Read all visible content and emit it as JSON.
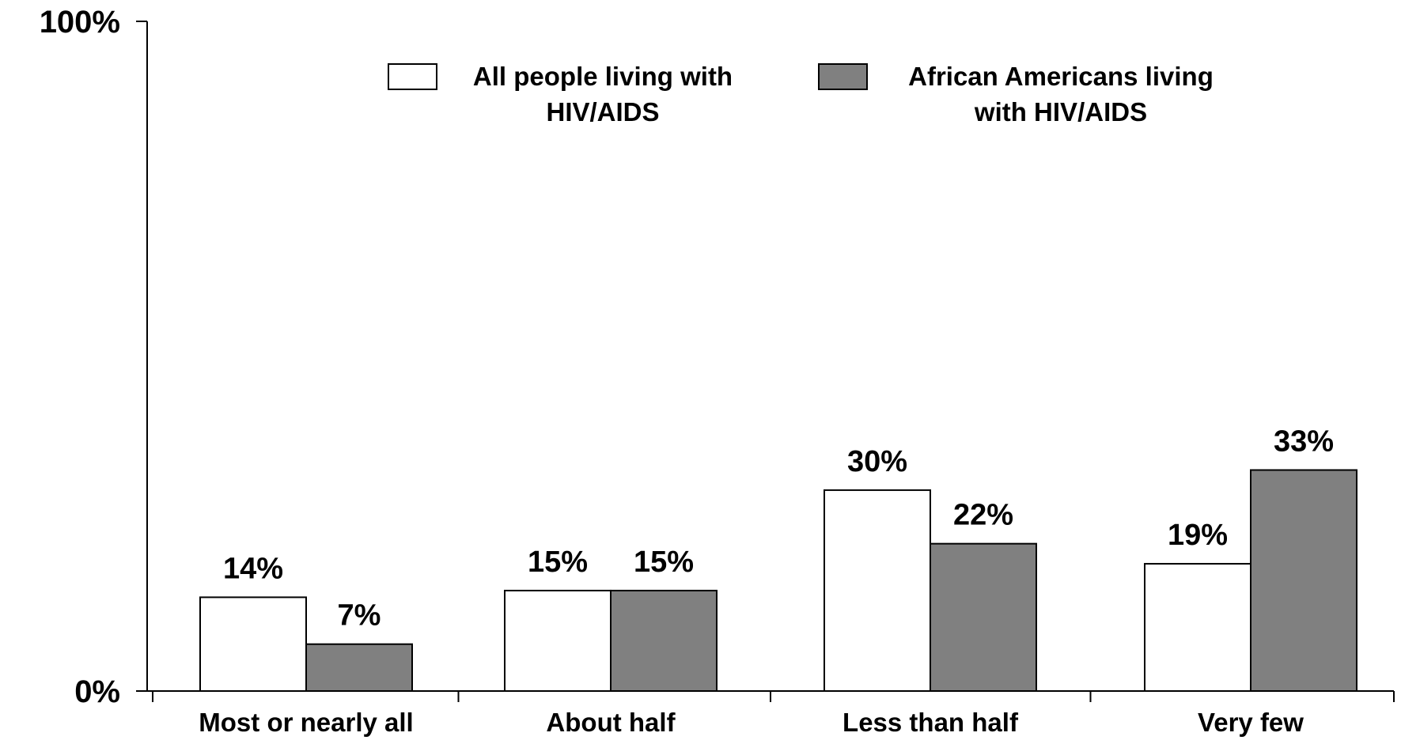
{
  "chart_data": {
    "type": "bar",
    "categories": [
      "Most or nearly all",
      "About half",
      "Less than half",
      "Very few"
    ],
    "series": [
      {
        "name": "All people living with HIV/AIDS",
        "legend_lines": [
          "All people living with",
          "HIV/AIDS"
        ],
        "values": [
          14,
          15,
          30,
          19
        ],
        "labels": [
          "14%",
          "15%",
          "30%",
          "19%"
        ],
        "color": "#ffffff"
      },
      {
        "name": "African Americans living with HIV/AIDS",
        "legend_lines": [
          "African Americans living",
          "with HIV/AIDS"
        ],
        "values": [
          7,
          15,
          22,
          33
        ],
        "labels": [
          "7%",
          "15%",
          "22%",
          "33%"
        ],
        "color": "#808080"
      }
    ],
    "ylim": [
      0,
      100
    ],
    "yticks": [
      {
        "value": 0,
        "label": "0%"
      },
      {
        "value": 100,
        "label": "100%"
      }
    ],
    "grid": false,
    "legend_position": "top-center",
    "title": "",
    "xlabel": "",
    "ylabel": ""
  }
}
